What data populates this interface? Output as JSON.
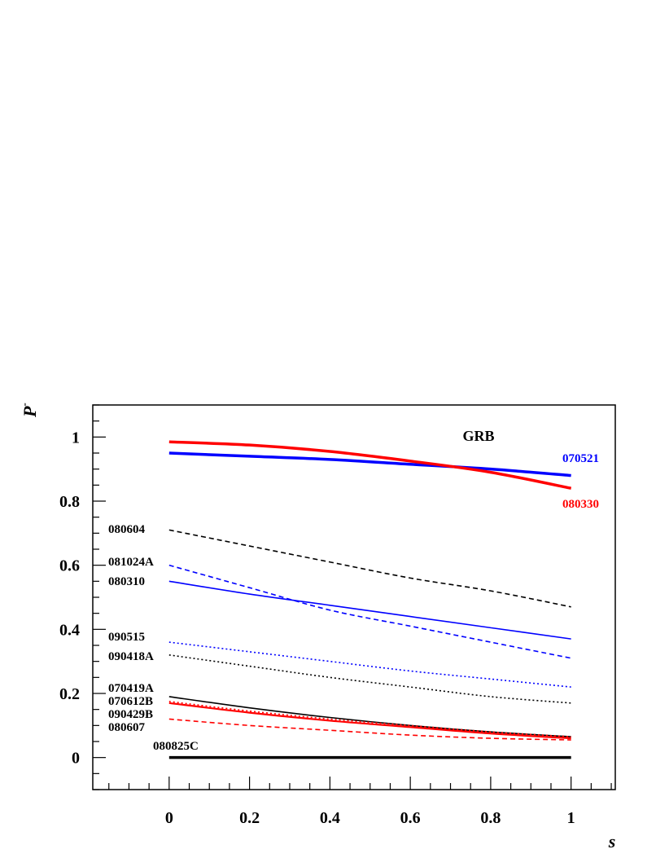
{
  "chart_data": {
    "type": "line",
    "title": "",
    "annotation": "GRB",
    "xlabel": "s",
    "ylabel": "P",
    "ylabel_superscript": "-",
    "xlim": [
      -0.19,
      1.11
    ],
    "ylim": [
      -0.1,
      1.1
    ],
    "x_ticks": [
      0,
      0.2,
      0.4,
      0.6,
      0.8,
      1
    ],
    "x_tick_labels": [
      "0",
      "0.2",
      "0.4",
      "0.6",
      "0.8",
      "1"
    ],
    "y_ticks": [
      0,
      0.2,
      0.4,
      0.6,
      0.8,
      1
    ],
    "y_tick_labels": [
      "0",
      "0.2",
      "0.4",
      "0.6",
      "0.8",
      "1"
    ],
    "grid": false,
    "legend": "none",
    "x": [
      0,
      0.2,
      0.4,
      0.6,
      0.8,
      1
    ],
    "series": [
      {
        "name": "070521",
        "color": "#0000ff",
        "style": "solid",
        "width": 3.5,
        "label_side": "right",
        "values": [
          0.95,
          0.94,
          0.93,
          0.915,
          0.9,
          0.88
        ]
      },
      {
        "name": "080330",
        "color": "#ff0000",
        "style": "solid",
        "width": 3.5,
        "label_side": "right",
        "values": [
          0.985,
          0.975,
          0.955,
          0.925,
          0.89,
          0.84
        ]
      },
      {
        "name": "080604",
        "color": "#000000",
        "style": "dashed",
        "width": 1.6,
        "label_side": "left",
        "values": [
          0.71,
          0.66,
          0.61,
          0.56,
          0.52,
          0.47
        ]
      },
      {
        "name": "081024A",
        "color": "#0000ff",
        "style": "dashed",
        "width": 1.6,
        "label_side": "left",
        "values": [
          0.6,
          0.53,
          0.46,
          0.41,
          0.36,
          0.31
        ]
      },
      {
        "name": "080310",
        "color": "#0000ff",
        "style": "solid",
        "width": 1.6,
        "label_side": "left",
        "values": [
          0.55,
          0.51,
          0.475,
          0.44,
          0.405,
          0.37
        ]
      },
      {
        "name": "090515",
        "color": "#0000ff",
        "style": "dotted",
        "width": 1.6,
        "label_side": "left",
        "values": [
          0.36,
          0.33,
          0.3,
          0.27,
          0.245,
          0.22
        ]
      },
      {
        "name": "090418A",
        "color": "#000000",
        "style": "dotted",
        "width": 1.6,
        "label_side": "left",
        "values": [
          0.32,
          0.285,
          0.25,
          0.22,
          0.19,
          0.17
        ]
      },
      {
        "name": "070419A",
        "color": "#000000",
        "style": "solid",
        "width": 1.6,
        "label_side": "left",
        "values": [
          0.19,
          0.155,
          0.125,
          0.1,
          0.08,
          0.065
        ]
      },
      {
        "name": "070612B",
        "color": "#ff0000",
        "style": "dotted",
        "width": 1.6,
        "label_side": "left",
        "values": [
          0.175,
          0.145,
          0.12,
          0.1,
          0.08,
          0.065
        ]
      },
      {
        "name": "090429B",
        "color": "#ff0000",
        "style": "solid",
        "width": 2.2,
        "label_side": "left",
        "values": [
          0.17,
          0.14,
          0.115,
          0.095,
          0.075,
          0.06
        ]
      },
      {
        "name": "080607",
        "color": "#ff0000",
        "style": "dashed",
        "width": 1.6,
        "label_side": "left",
        "values": [
          0.12,
          0.1,
          0.085,
          0.07,
          0.06,
          0.055
        ]
      },
      {
        "name": "080825C",
        "color": "#000000",
        "style": "solid",
        "width": 3.5,
        "label_side": "above",
        "values": [
          0.0,
          0.0,
          0.0,
          0.0,
          0.0,
          0.0
        ]
      }
    ]
  }
}
